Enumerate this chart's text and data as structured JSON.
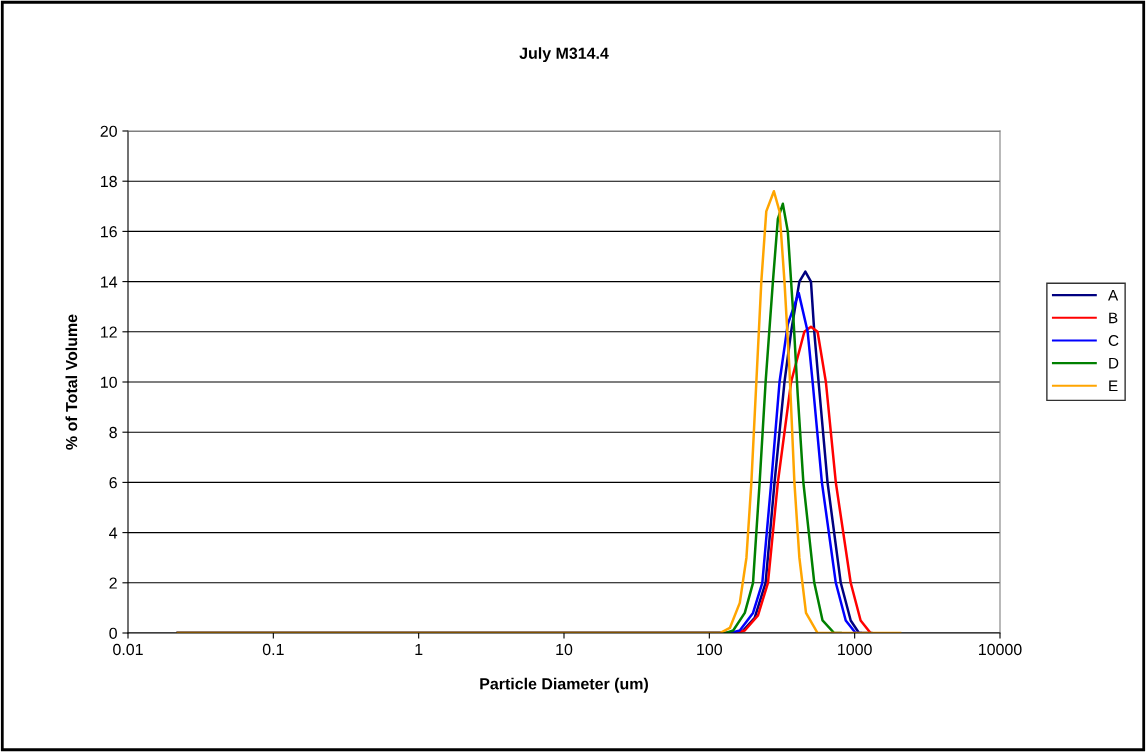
{
  "chart_data": {
    "type": "line",
    "title": "July M314.4",
    "xlabel": "Particle Diameter (um)",
    "ylabel": "% of Total Volume",
    "log": "x",
    "xlim": [
      0.01,
      10000
    ],
    "xticks": [
      0.01,
      0.1,
      1,
      10,
      100,
      1000,
      10000
    ],
    "ylim": [
      0,
      20
    ],
    "yticks": [
      0,
      2,
      4,
      6,
      8,
      10,
      12,
      14,
      16,
      18,
      20
    ],
    "grid": "y",
    "legend": "right",
    "marker": "none",
    "line_style": "solid",
    "series": [
      {
        "name": "A",
        "color": "#000080",
        "x": [
          0.022,
          150,
          170.8,
          205.1,
          243.9,
          281.0,
          328.9,
          365.3,
          416.4,
          457.7,
          500.4,
          527.4,
          564.6,
          650.6,
          802.3,
          939.1,
          1071,
          1300
        ],
        "values": [
          0,
          0,
          0.1,
          0.6,
          2,
          6,
          10,
          12,
          14,
          14.4,
          14,
          12,
          10,
          6,
          2,
          0.5,
          0,
          0
        ]
      },
      {
        "name": "B",
        "color": "#ff0000",
        "x": [
          0.022,
          150,
          175.4,
          216.2,
          253.1,
          296.2,
          365.3,
          450.6,
          500.4,
          555.6,
          633.8,
          741.7,
          939.1,
          1099,
          1286
        ],
        "values": [
          0,
          0,
          0.1,
          0.7,
          2,
          6,
          10,
          12,
          12.2,
          12,
          10,
          6,
          2,
          0.5,
          0
        ]
      },
      {
        "name": "C",
        "color": "#0000ff",
        "x": [
          0.022,
          140,
          162,
          199.8,
          231.5,
          266.7,
          304.1,
          346.7,
          412,
          474.9,
          513.7,
          595,
          741.7,
          868,
          1016,
          1100
        ],
        "values": [
          0,
          0,
          0.1,
          0.8,
          2,
          6,
          10,
          12.3,
          13.55,
          12,
          10,
          6,
          2,
          0.5,
          0,
          0
        ]
      },
      {
        "name": "D",
        "color": "#008000",
        "x": [
          0.022,
          130,
          145.9,
          175.4,
          199.8,
          221.9,
          243.9,
          273.8,
          296.2,
          320.4,
          346.7,
          375,
          405.6,
          443.6,
          527.4,
          601.2,
          722.5,
          800
        ],
        "values": [
          0,
          0,
          0.1,
          0.8,
          2,
          6,
          10,
          14,
          16.5,
          17.1,
          16,
          13,
          9.5,
          6,
          2,
          0.5,
          0,
          0
        ]
      },
      {
        "name": "E",
        "color": "#ffa500",
        "x": [
          0.022,
          118.3,
          138.4,
          162,
          180,
          194.7,
          210.6,
          227.9,
          246.5,
          278.2,
          304.1,
          328.9,
          355.9,
          384.9,
          416.4,
          462.5,
          555.6,
          2056
        ],
        "values": [
          0,
          0,
          0.2,
          1.2,
          3,
          6,
          10,
          14,
          16.8,
          17.6,
          16.8,
          14,
          10.5,
          6,
          3,
          0.8,
          0,
          0
        ]
      }
    ]
  }
}
